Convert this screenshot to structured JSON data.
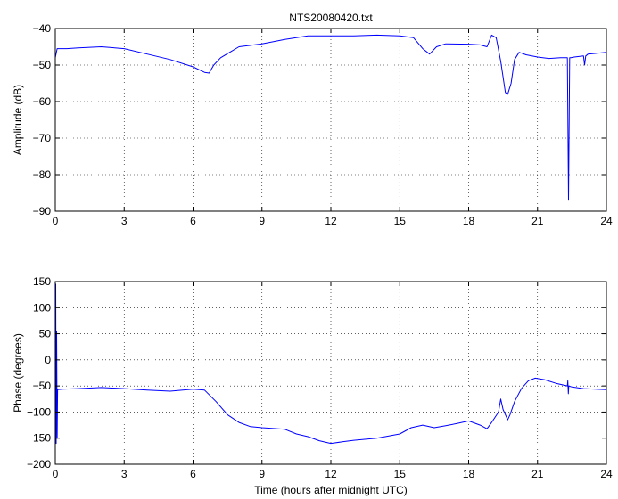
{
  "chart_data": [
    {
      "type": "line",
      "title": "NTS20080420.txt",
      "xlabel": "",
      "ylabel": "Amplitude (dB)",
      "xlim": [
        0,
        24
      ],
      "ylim": [
        -90,
        -40
      ],
      "xticks": [
        0,
        3,
        6,
        9,
        12,
        15,
        18,
        21,
        24
      ],
      "yticks": [
        -40,
        -50,
        -60,
        -70,
        -80,
        -90
      ],
      "grid": true,
      "series": [
        {
          "color": "#0000ff",
          "x": [
            0,
            0.08,
            0.5,
            1,
            2,
            3,
            4,
            5,
            6,
            6.5,
            6.7,
            6.9,
            7.2,
            8,
            9,
            10,
            11,
            12,
            13,
            14,
            15,
            15.6,
            16,
            16.3,
            16.6,
            17,
            18,
            18.5,
            18.8,
            19,
            19.2,
            19.4,
            19.6,
            19.7,
            19.85,
            20,
            20.2,
            20.5,
            21,
            21.5,
            22,
            22.3,
            22.35,
            22.4,
            22.45,
            22.6,
            23,
            23.05,
            23.1,
            23.2,
            24
          ],
          "y": [
            -48,
            -45.5,
            -45.5,
            -45.3,
            -45,
            -45.5,
            -47,
            -48.5,
            -50.5,
            -52,
            -52.2,
            -50,
            -48,
            -45,
            -44.2,
            -43,
            -42,
            -42,
            -42,
            -41.8,
            -42,
            -42.5,
            -45.5,
            -47,
            -45,
            -44.2,
            -44.3,
            -44.5,
            -45,
            -41.8,
            -42.5,
            -49,
            -57.5,
            -58,
            -55,
            -48.5,
            -46.5,
            -47.2,
            -47.8,
            -48.2,
            -48,
            -48,
            -87,
            -48,
            -48,
            -47.8,
            -47.5,
            -50,
            -47.5,
            -47,
            -46.5
          ]
        }
      ]
    },
    {
      "type": "line",
      "title": "",
      "xlabel": "Time (hours after midnight UTC)",
      "ylabel": "Phase (degrees)",
      "xlim": [
        0,
        24
      ],
      "ylim": [
        -200,
        150
      ],
      "xticks": [
        0,
        3,
        6,
        9,
        12,
        15,
        18,
        21,
        24
      ],
      "yticks": [
        150,
        100,
        50,
        0,
        -50,
        -100,
        -150,
        -200
      ],
      "grid": true,
      "series": [
        {
          "color": "#0000ff",
          "x": [
            0,
            0.02,
            0.04,
            0.06,
            0.08,
            0.1,
            0.3,
            1,
            2,
            3,
            4,
            5,
            6,
            6.5,
            7,
            7.5,
            8,
            8.5,
            9,
            10,
            10.5,
            11,
            11.5,
            12,
            12.5,
            13,
            14,
            15,
            15.5,
            16,
            16.5,
            17,
            17.5,
            18,
            18.5,
            18.8,
            19,
            19.3,
            19.4,
            19.5,
            19.7,
            19.8,
            20,
            20.3,
            20.6,
            20.9,
            21.3,
            21.8,
            22.3,
            22.32,
            22.34,
            22.36,
            22.5,
            23,
            24
          ],
          "y": [
            -60,
            145,
            -160,
            55,
            -150,
            -57,
            -56,
            -55,
            -53,
            -55,
            -58,
            -60,
            -56,
            -58,
            -80,
            -105,
            -120,
            -128,
            -130,
            -133,
            -142,
            -147,
            -155,
            -160,
            -157,
            -154,
            -150,
            -142,
            -130,
            -125,
            -130,
            -126,
            -122,
            -117,
            -125,
            -132,
            -120,
            -100,
            -75,
            -95,
            -115,
            -105,
            -80,
            -55,
            -40,
            -35,
            -38,
            -45,
            -50,
            -40,
            -65,
            -50,
            -52,
            -55,
            -57
          ]
        }
      ]
    }
  ]
}
